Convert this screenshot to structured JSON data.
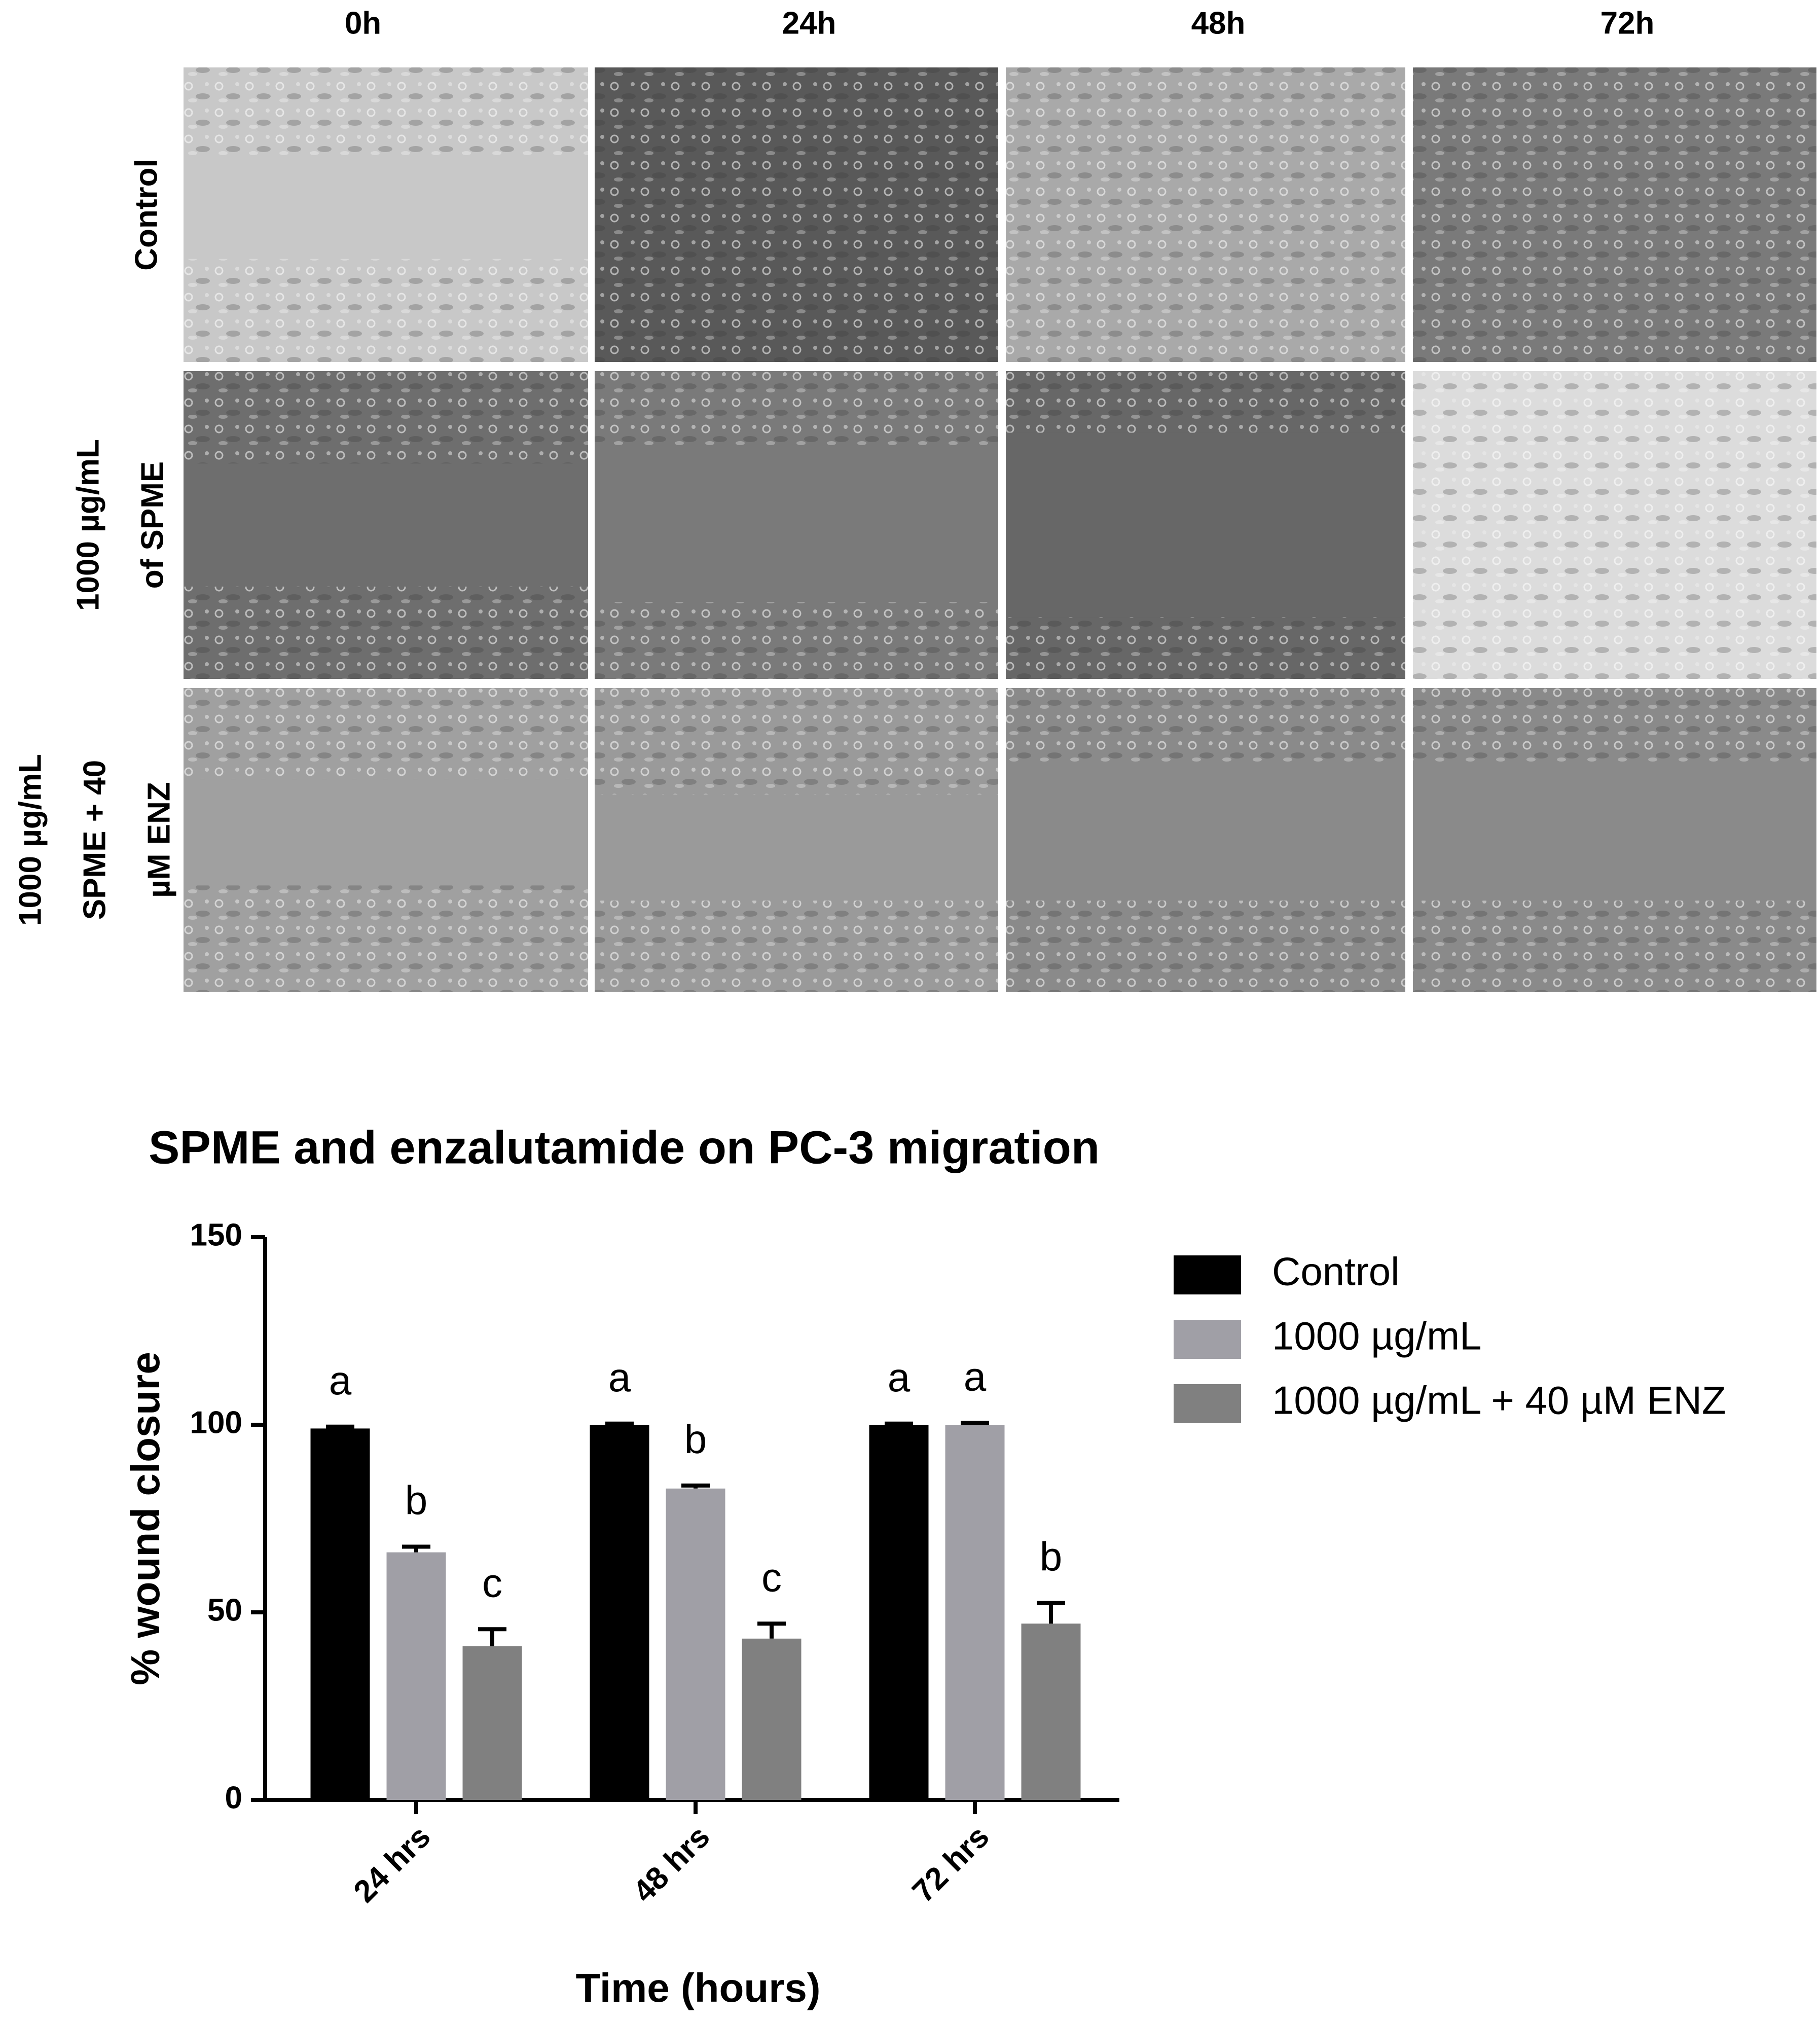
{
  "micrographs": {
    "columns": [
      "0h",
      "24h",
      "48h",
      "72h"
    ],
    "rows": [
      [
        "Control"
      ],
      [
        "1000 µg/mL",
        "of SPME"
      ],
      [
        "1000 µg/mL",
        "SPME + 40",
        "µM ENZ"
      ]
    ]
  },
  "chart_data": {
    "type": "bar",
    "title": "SPME and enzalutamide on PC-3 migration",
    "x_label": "Time (hours)",
    "y_label": "% wound closure",
    "categories": [
      "24 hrs",
      "48 hrs",
      "72 hrs"
    ],
    "series": [
      {
        "name": "Control",
        "color": "#000000",
        "values": [
          99,
          100,
          100
        ],
        "errors": [
          0.5,
          0.3,
          0.3
        ],
        "significance": [
          "a",
          "a",
          "a"
        ]
      },
      {
        "name": "1000 µg/mL",
        "color": "#a09fa6",
        "values": [
          66,
          83,
          100
        ],
        "errors": [
          1.5,
          0.8,
          0.5
        ],
        "significance": [
          "b",
          "b",
          "a"
        ]
      },
      {
        "name": "1000 µg/mL + 40 µM ENZ",
        "color": "#808080",
        "values": [
          41,
          43,
          47
        ],
        "errors": [
          4.5,
          4,
          5.5
        ],
        "significance": [
          "c",
          "c",
          "b"
        ]
      }
    ],
    "ylim": [
      0,
      150
    ],
    "yticks": [
      0,
      50,
      100,
      150
    ],
    "grid": false,
    "legend": "right"
  }
}
